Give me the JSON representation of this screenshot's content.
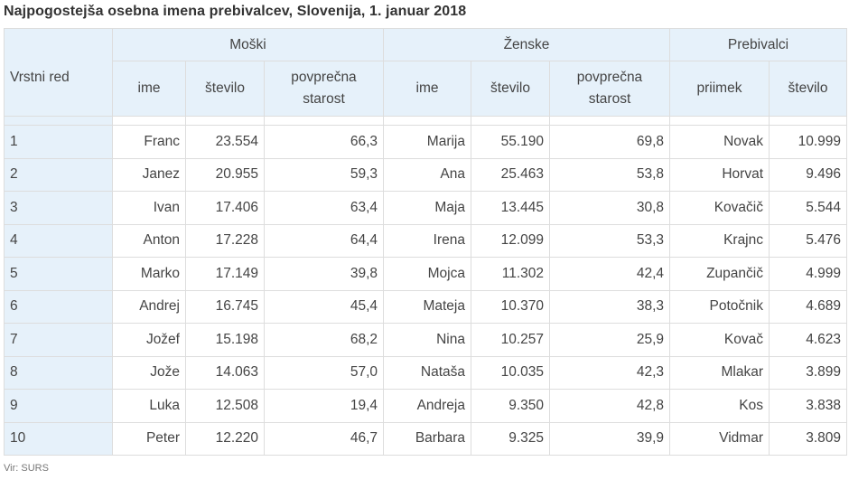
{
  "title": "Najpogostejša osebna imena prebivalcev, Slovenija, 1. januar 2018",
  "header": {
    "rank_label": "Vrstni red",
    "groups": {
      "male": "Moški",
      "female": "Ženske",
      "residents": "Prebivalci"
    },
    "male_cols": {
      "name": "ime",
      "count": "število",
      "age_line1": "povprečna",
      "age_line2": "starost"
    },
    "female_cols": {
      "name": "ime",
      "count": "število",
      "age_line1": "povprečna",
      "age_line2": "starost"
    },
    "resident_cols": {
      "surname": "priimek",
      "count": "število"
    }
  },
  "rows": [
    {
      "rank": "1",
      "m_name": "Franc",
      "m_count": "23.554",
      "m_age": "66,3",
      "f_name": "Marija",
      "f_count": "55.190",
      "f_age": "69,8",
      "surname": "Novak",
      "s_count": "10.999"
    },
    {
      "rank": "2",
      "m_name": "Janez",
      "m_count": "20.955",
      "m_age": "59,3",
      "f_name": "Ana",
      "f_count": "25.463",
      "f_age": "53,8",
      "surname": "Horvat",
      "s_count": "9.496"
    },
    {
      "rank": "3",
      "m_name": "Ivan",
      "m_count": "17.406",
      "m_age": "63,4",
      "f_name": "Maja",
      "f_count": "13.445",
      "f_age": "30,8",
      "surname": "Kovačič",
      "s_count": "5.544"
    },
    {
      "rank": "4",
      "m_name": "Anton",
      "m_count": "17.228",
      "m_age": "64,4",
      "f_name": "Irena",
      "f_count": "12.099",
      "f_age": "53,3",
      "surname": "Krajnc",
      "s_count": "5.476"
    },
    {
      "rank": "5",
      "m_name": "Marko",
      "m_count": "17.149",
      "m_age": "39,8",
      "f_name": "Mojca",
      "f_count": "11.302",
      "f_age": "42,4",
      "surname": "Zupančič",
      "s_count": "4.999"
    },
    {
      "rank": "6",
      "m_name": "Andrej",
      "m_count": "16.745",
      "m_age": "45,4",
      "f_name": "Mateja",
      "f_count": "10.370",
      "f_age": "38,3",
      "surname": "Potočnik",
      "s_count": "4.689"
    },
    {
      "rank": "7",
      "m_name": "Jožef",
      "m_count": "15.198",
      "m_age": "68,2",
      "f_name": "Nina",
      "f_count": "10.257",
      "f_age": "25,9",
      "surname": "Kovač",
      "s_count": "4.623"
    },
    {
      "rank": "8",
      "m_name": "Jože",
      "m_count": "14.063",
      "m_age": "57,0",
      "f_name": "Nataša",
      "f_count": "10.035",
      "f_age": "42,3",
      "surname": "Mlakar",
      "s_count": "3.899"
    },
    {
      "rank": "9",
      "m_name": "Luka",
      "m_count": "12.508",
      "m_age": "19,4",
      "f_name": "Andreja",
      "f_count": "9.350",
      "f_age": "42,8",
      "surname": "Kos",
      "s_count": "3.838"
    },
    {
      "rank": "10",
      "m_name": "Peter",
      "m_count": "12.220",
      "m_age": "46,7",
      "f_name": "Barbara",
      "f_count": "9.325",
      "f_age": "39,9",
      "surname": "Vidmar",
      "s_count": "3.809"
    }
  ],
  "source": "Vir: SURS",
  "colors": {
    "header_bg": "#e6f1fa",
    "border": "#dddddd",
    "text": "#444444"
  }
}
